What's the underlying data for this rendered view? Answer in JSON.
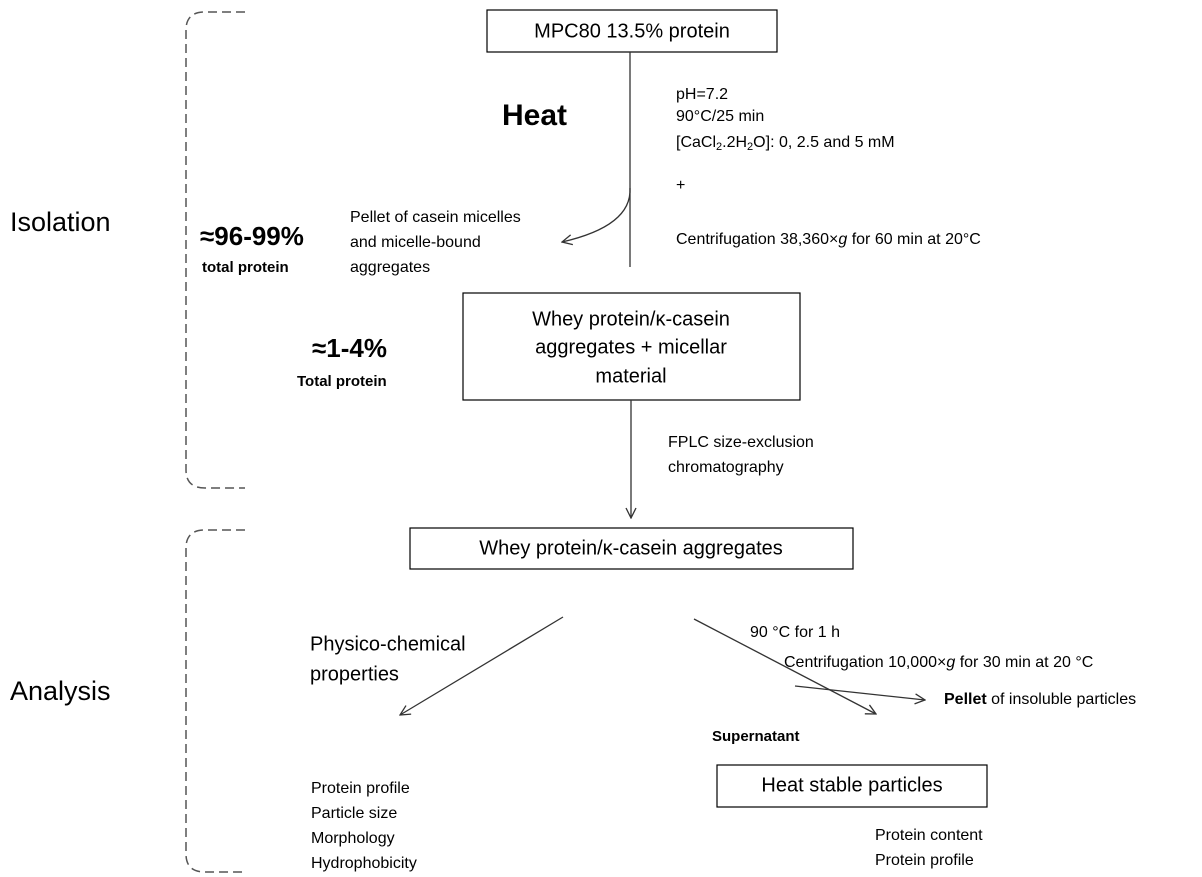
{
  "sections": [
    "Isolation",
    "Analysis"
  ],
  "start": "MPC80 13.5% protein",
  "heat": "Heat",
  "conditions": {
    "ph": "pH=7.2",
    "heating": "90°C/25 min",
    "calcium": [
      "[CaCl",
      "2",
      ".2H",
      "2",
      "O]: 0, 2.5 and 5 mM"
    ],
    "plus": "+",
    "centrifugation": [
      "Centrifugation 38,360×",
      "g",
      " for 60 min at 20°C"
    ]
  },
  "pellet": {
    "share": "≈96-99%",
    "share_label": "total protein",
    "lines": [
      "Pellet of casein micelles",
      "and micelle-bound",
      "aggregates"
    ]
  },
  "supernatant_box": {
    "share": "≈1-4%",
    "share_label": "Total protein",
    "lines": [
      "Whey protein/κ-casein",
      "aggregates + micellar",
      "material"
    ]
  },
  "fplc": [
    "FPLC size-exclusion",
    "chromatography"
  ],
  "aggregates": "Whey protein/κ-casein aggregates",
  "physico": {
    "lines": [
      "Physico-chemical",
      "properties"
    ],
    "items": [
      "Protein profile",
      "Particle size",
      "Morphology",
      "Hydrophobicity"
    ]
  },
  "stability": {
    "heating": "90 °C for 1 h",
    "centrifugation": [
      "Centrifugation 10,000×",
      "g",
      " for 30 min at 20 °C"
    ],
    "pellet": [
      "Pellet",
      " of insoluble particles"
    ],
    "supernatant": "Supernatant",
    "box": "Heat stable particles",
    "items": [
      "Protein content",
      "Protein profile"
    ]
  }
}
